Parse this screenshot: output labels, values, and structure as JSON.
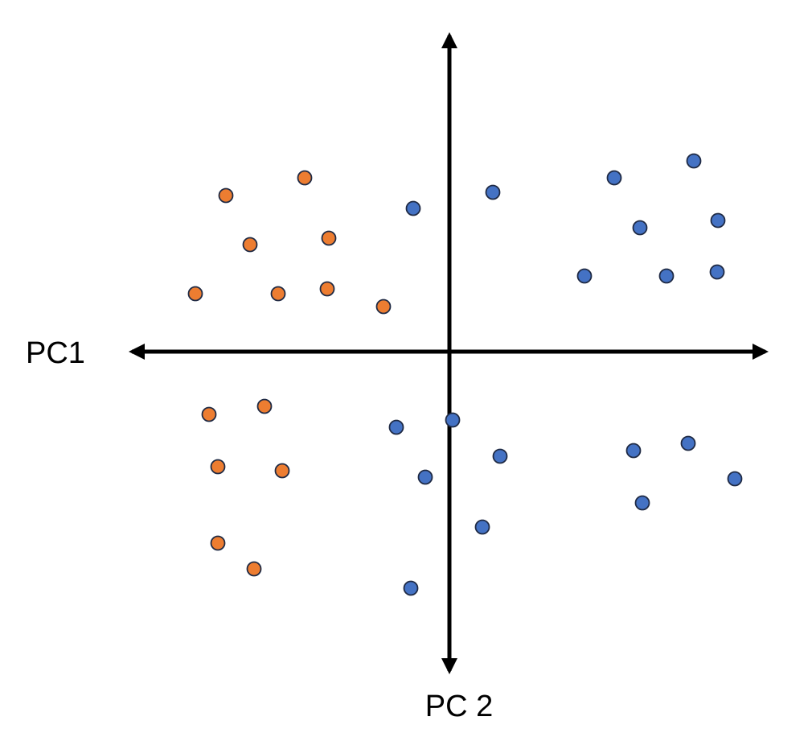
{
  "chart_data": {
    "type": "scatter",
    "title": "",
    "xlabel": "PC1",
    "ylabel": "PC 2",
    "xlim": [
      -400,
      400
    ],
    "ylim": [
      -400,
      400
    ],
    "grid": false,
    "legend": "none",
    "series": [
      {
        "color": "#ED7D31",
        "points": [
          [
            -278,
            194
          ],
          [
            -180,
            216
          ],
          [
            -248,
            133
          ],
          [
            -150,
            141
          ],
          [
            -316,
            72
          ],
          [
            -213,
            72
          ],
          [
            -152,
            78
          ],
          [
            -82,
            56
          ],
          [
            -299,
            -78
          ],
          [
            -230,
            -68
          ],
          [
            -288,
            -143
          ],
          [
            -208,
            -148
          ],
          [
            -288,
            -238
          ],
          [
            -243,
            -270
          ]
        ]
      },
      {
        "color": "#4472C4",
        "points": [
          [
            -45,
            178
          ],
          [
            54,
            198
          ],
          [
            205,
            216
          ],
          [
            304,
            237
          ],
          [
            237,
            154
          ],
          [
            334,
            163
          ],
          [
            168,
            94
          ],
          [
            270,
            94
          ],
          [
            333,
            99
          ],
          [
            -66,
            -94
          ],
          [
            4,
            -85
          ],
          [
            63,
            -130
          ],
          [
            -30,
            -156
          ],
          [
            41,
            -218
          ],
          [
            -48,
            -294
          ],
          [
            229,
            -123
          ],
          [
            297,
            -114
          ],
          [
            355,
            -158
          ],
          [
            240,
            -188
          ]
        ]
      }
    ],
    "point_stroke": "#1F2A44",
    "axis_color": "#000000"
  }
}
